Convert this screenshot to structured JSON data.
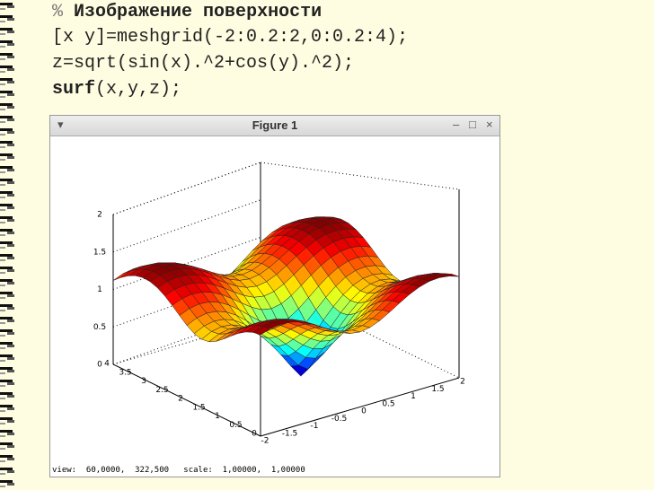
{
  "code": {
    "line1_mark": "%",
    "line1_text": "Изображение поверхности",
    "line2": "[x y]=meshgrid(-2:0.2:2,0:0.2:4);",
    "line3": "z=sqrt(sin(x).^2+cos(y).^2);",
    "line4_bold": "surf",
    "line4_rest": "(x,y,z);"
  },
  "figure": {
    "title": "Figure 1",
    "status": "view:  60,0000,  322,500   scale:  1,00000,  1,00000",
    "z_ticks": [
      "2",
      "1.5",
      "1",
      "0.5",
      "0"
    ],
    "y_ticks": [
      "4",
      "3.5",
      "3",
      "2.5",
      "2",
      "1.5",
      "1",
      "0.5",
      "0"
    ],
    "x_ticks": [
      "-2",
      "-1.5",
      "-1",
      "-0.5",
      "0",
      "0.5",
      "1",
      "1.5",
      "2"
    ]
  }
}
